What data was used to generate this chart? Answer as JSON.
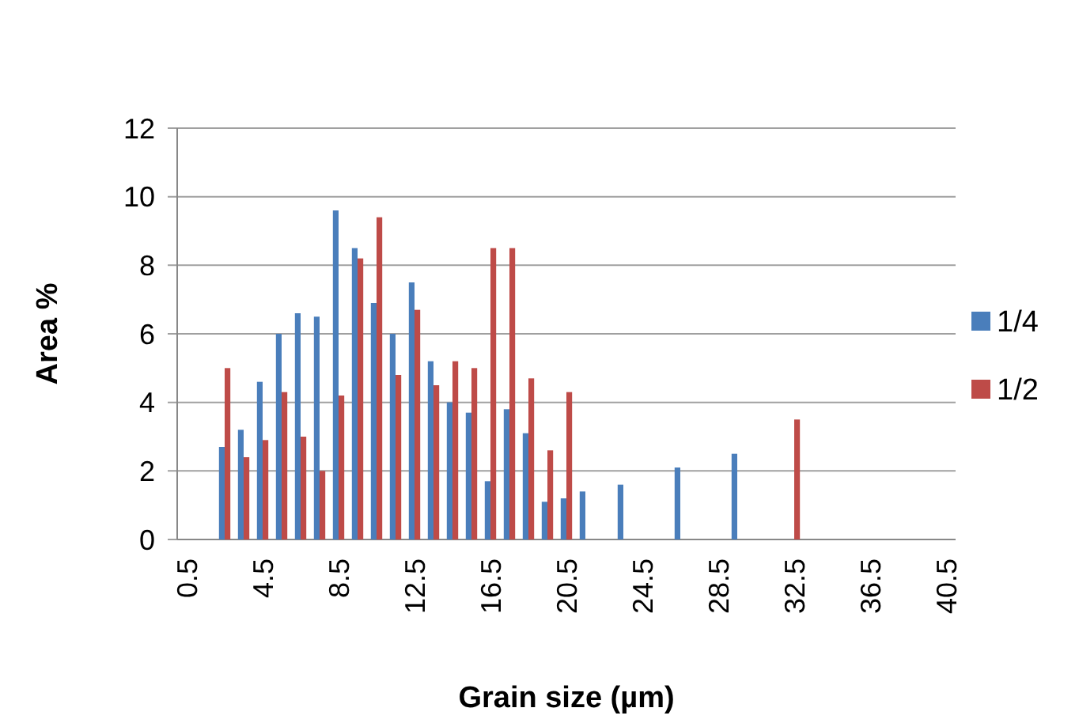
{
  "chart_data": {
    "type": "bar",
    "xlabel": "Grain size (µm)",
    "ylabel": "Area %",
    "categories": [
      "0.5",
      null,
      null,
      null,
      "4.5",
      null,
      null,
      null,
      "8.5",
      null,
      null,
      null,
      "12.5",
      null,
      null,
      null,
      "16.5",
      null,
      null,
      null,
      "20.5",
      null,
      null,
      null,
      "24.5",
      null,
      null,
      null,
      "28.5",
      null,
      null,
      null,
      "32.5",
      null,
      null,
      null,
      "36.5",
      null,
      null,
      null,
      "40.5"
    ],
    "series": [
      {
        "name": "1/4",
        "color": "#4a7ebb",
        "values": [
          null,
          null,
          2.7,
          3.2,
          4.6,
          6.0,
          6.6,
          6.5,
          9.6,
          8.5,
          6.9,
          6.0,
          7.5,
          5.2,
          4.0,
          3.7,
          1.7,
          3.8,
          3.1,
          1.1,
          1.2,
          1.4,
          null,
          1.6,
          null,
          null,
          2.1,
          null,
          null,
          2.5,
          null,
          null,
          null,
          null,
          null,
          null,
          null,
          null,
          null,
          null,
          null
        ]
      },
      {
        "name": "1/2",
        "color": "#be4b48",
        "values": [
          null,
          null,
          5.0,
          2.4,
          2.9,
          4.3,
          3.0,
          2.0,
          4.2,
          8.2,
          9.4,
          4.8,
          6.7,
          4.5,
          5.2,
          5.0,
          8.5,
          8.5,
          4.7,
          2.6,
          4.3,
          null,
          null,
          null,
          null,
          null,
          null,
          null,
          null,
          null,
          null,
          null,
          3.5,
          null,
          null,
          null,
          null,
          null,
          null,
          null,
          null
        ]
      }
    ],
    "ylim": [
      0,
      12
    ],
    "yticks": [
      0,
      2,
      4,
      6,
      8,
      10,
      12
    ],
    "grid": "y",
    "legend": "right"
  }
}
